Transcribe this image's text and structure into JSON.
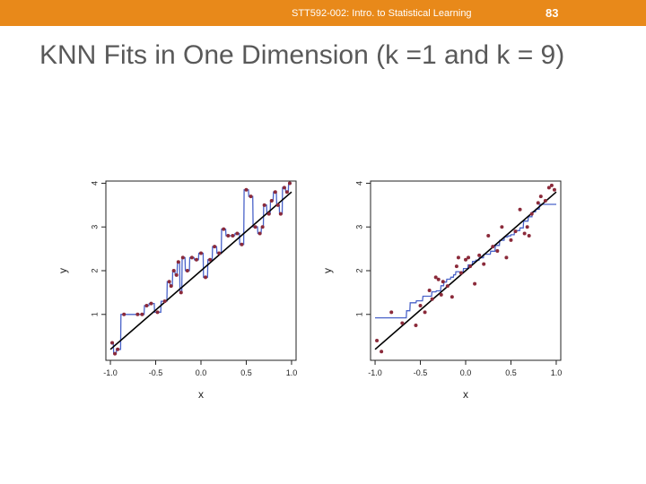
{
  "header": {
    "course": "STT592-002: Intro. to Statistical Learning",
    "page_number": "83"
  },
  "slide": {
    "title": "KNN Fits in One Dimension (k =1 and k = 9)"
  },
  "colors": {
    "header_bg": "#e8891a",
    "points": "#8b2a3a",
    "fit_line": "#4a63c9",
    "true_line": "#000000"
  },
  "chart_data": [
    {
      "type": "scatter",
      "title": "",
      "xlabel": "x",
      "ylabel": "y",
      "xlim": [
        -1.05,
        1.05
      ],
      "ylim": [
        -0.05,
        4.05
      ],
      "xticks": [
        "-1.0",
        "-0.5",
        "0.0",
        "0.5",
        "1.0"
      ],
      "yticks": [
        "1",
        "2",
        "3",
        "4"
      ],
      "k": 1,
      "true_function": {
        "slope": 1.8,
        "intercept": 2.0
      },
      "points": [
        [
          -0.98,
          0.35
        ],
        [
          -0.95,
          0.1
        ],
        [
          -0.92,
          0.2
        ],
        [
          -0.85,
          1.0
        ],
        [
          -0.7,
          1.0
        ],
        [
          -0.65,
          1.0
        ],
        [
          -0.6,
          1.2
        ],
        [
          -0.55,
          1.25
        ],
        [
          -0.48,
          1.05
        ],
        [
          -0.4,
          1.3
        ],
        [
          -0.35,
          1.75
        ],
        [
          -0.33,
          1.65
        ],
        [
          -0.3,
          2.0
        ],
        [
          -0.27,
          1.9
        ],
        [
          -0.25,
          2.2
        ],
        [
          -0.22,
          1.5
        ],
        [
          -0.2,
          2.3
        ],
        [
          -0.15,
          2.0
        ],
        [
          -0.1,
          2.3
        ],
        [
          -0.05,
          2.25
        ],
        [
          0.0,
          2.4
        ],
        [
          0.05,
          1.85
        ],
        [
          0.1,
          2.25
        ],
        [
          0.15,
          2.55
        ],
        [
          0.2,
          2.4
        ],
        [
          0.25,
          2.95
        ],
        [
          0.3,
          2.8
        ],
        [
          0.35,
          2.8
        ],
        [
          0.4,
          2.85
        ],
        [
          0.45,
          2.6
        ],
        [
          0.5,
          3.85
        ],
        [
          0.55,
          3.7
        ],
        [
          0.6,
          3.0
        ],
        [
          0.65,
          2.85
        ],
        [
          0.68,
          3.0
        ],
        [
          0.7,
          3.5
        ],
        [
          0.75,
          3.3
        ],
        [
          0.78,
          3.6
        ],
        [
          0.82,
          3.8
        ],
        [
          0.85,
          3.5
        ],
        [
          0.88,
          3.3
        ],
        [
          0.92,
          3.9
        ],
        [
          0.95,
          3.8
        ],
        [
          0.98,
          4.0
        ]
      ]
    },
    {
      "type": "scatter",
      "title": "",
      "xlabel": "x",
      "ylabel": "y",
      "xlim": [
        -1.05,
        1.05
      ],
      "ylim": [
        -0.05,
        4.05
      ],
      "xticks": [
        "-1.0",
        "-0.5",
        "0.0",
        "0.5",
        "1.0"
      ],
      "yticks": [
        "1",
        "2",
        "3",
        "4"
      ],
      "k": 9,
      "true_function": {
        "slope": 1.8,
        "intercept": 2.0
      },
      "points": [
        [
          -0.98,
          0.4
        ],
        [
          -0.93,
          0.15
        ],
        [
          -0.82,
          1.05
        ],
        [
          -0.7,
          0.8
        ],
        [
          -0.55,
          0.75
        ],
        [
          -0.5,
          1.2
        ],
        [
          -0.45,
          1.05
        ],
        [
          -0.4,
          1.55
        ],
        [
          -0.37,
          1.35
        ],
        [
          -0.33,
          1.85
        ],
        [
          -0.3,
          1.8
        ],
        [
          -0.27,
          1.45
        ],
        [
          -0.25,
          1.75
        ],
        [
          -0.2,
          1.65
        ],
        [
          -0.15,
          1.4
        ],
        [
          -0.1,
          2.1
        ],
        [
          -0.08,
          2.3
        ],
        [
          -0.05,
          1.95
        ],
        [
          0.0,
          2.25
        ],
        [
          0.03,
          2.3
        ],
        [
          0.05,
          2.1
        ],
        [
          0.1,
          1.7
        ],
        [
          0.15,
          2.35
        ],
        [
          0.2,
          2.15
        ],
        [
          0.25,
          2.8
        ],
        [
          0.3,
          2.55
        ],
        [
          0.35,
          2.45
        ],
        [
          0.4,
          3.0
        ],
        [
          0.45,
          2.3
        ],
        [
          0.5,
          2.7
        ],
        [
          0.55,
          2.9
        ],
        [
          0.6,
          3.4
        ],
        [
          0.65,
          2.85
        ],
        [
          0.68,
          3.0
        ],
        [
          0.7,
          2.8
        ],
        [
          0.73,
          3.3
        ],
        [
          0.8,
          3.55
        ],
        [
          0.83,
          3.7
        ],
        [
          0.88,
          3.6
        ],
        [
          0.92,
          3.9
        ],
        [
          0.95,
          3.95
        ],
        [
          0.98,
          3.85
        ]
      ]
    }
  ]
}
